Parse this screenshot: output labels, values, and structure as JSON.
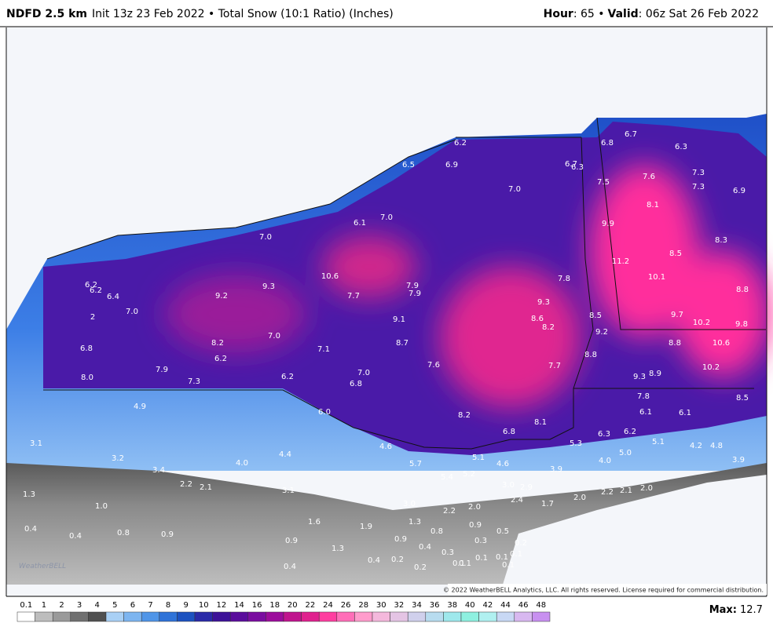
{
  "header": {
    "model": "NDFD 2.5 km",
    "description": "Init 13z 23 Feb 2022 • Total Snow (10:1 Ratio) (Inches)",
    "hour_label": "Hour",
    "hour": ": 65 •",
    "valid_label": "Valid",
    "valid": ": 06z Sat 26 Feb 2022"
  },
  "map": {
    "labels": [
      "6.2",
      "6.5",
      "6.9",
      "7.0",
      "6.8",
      "6.7",
      "6.3",
      "6.7",
      "6.3",
      "7.5",
      "7.6",
      "7.3",
      "7.3",
      "6.9",
      "7.0",
      "6.1",
      "7.0",
      "8.1",
      "9.9",
      "8.3",
      "11.2",
      "8.5",
      "10.1",
      "10.6",
      "9.3",
      "9.2",
      "6.2",
      "6.2",
      "6.4",
      "7.0",
      "2",
      "7.7",
      "7.9",
      "7.9",
      "7.8",
      "9.3",
      "8.8",
      "9.1",
      "8.6",
      "8.2",
      "8.5",
      "9.7",
      "10.2",
      "9.8",
      "9.2",
      "7.0",
      "8.2",
      "8.7",
      "7.1",
      "6.8",
      "8.8",
      "10.6",
      "8.8",
      "6.2",
      "7.7",
      "7.6",
      "7.9",
      "7.0",
      "10.2",
      "8.9",
      "9.3",
      "6.2",
      "6.8",
      "8.0",
      "7.3",
      "7.8",
      "8.5",
      "4.9",
      "6.0",
      "6.1",
      "6.1",
      "8.2",
      "8.1",
      "6.8",
      "6.2",
      "6.3",
      "3.1",
      "5.1",
      "5.3",
      "4.2",
      "4.8",
      "4.6",
      "5.0",
      "4.4",
      "4.0",
      "5.1",
      "3.2",
      "5.7",
      "4.0",
      "4.6",
      "3.9",
      "3.4",
      "3.9",
      "5.2",
      "5.4",
      "2.2",
      "2.1",
      "3.0",
      "2.9",
      "3.1",
      "1.3",
      "2.0",
      "2.2",
      "2.1",
      "2.0",
      "2.0",
      "2.4",
      "1.7",
      "3.0",
      "1.0",
      "2.2",
      "1.6",
      "1.3",
      "1.9",
      "0.9",
      "0.4",
      "0.8",
      "0.5",
      "0.4",
      "0.8",
      "0.9",
      "0.3",
      "0.9",
      "0.9",
      "0.2",
      "1.3",
      "0.4",
      "0.3",
      "0.1",
      "0.1",
      "0.1",
      "0.4",
      "0.2",
      "0.1",
      "0.1",
      "0.1",
      "0.4",
      "0.2"
    ]
  },
  "colorbar": {
    "ticks": [
      0.1,
      1,
      2,
      3,
      4,
      5,
      6,
      7,
      8,
      9,
      10,
      12,
      14,
      16,
      18,
      20,
      22,
      24,
      26,
      28,
      30,
      32,
      34,
      36,
      38,
      40,
      42,
      44,
      46,
      48
    ]
  },
  "footer": {
    "max_label": "Max:",
    "max": 12.7,
    "copyright": "© 2022 WeatherBELL Analytics, LLC. All rights reserved. License required for commercial distribution.",
    "logo": "WeatherBELL"
  }
}
